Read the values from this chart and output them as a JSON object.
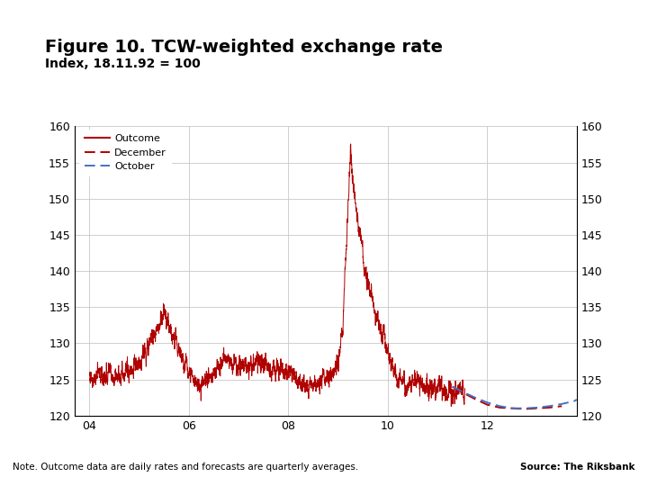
{
  "title": "Figure 10. TCW-weighted exchange rate",
  "subtitle": "Index, 18.11.92 = 100",
  "note": "Note. Outcome data are daily rates and forecasts are quarterly averages.",
  "source": "Source: The Riksbank",
  "ylim": [
    120,
    160
  ],
  "yticks": [
    120,
    125,
    130,
    135,
    140,
    145,
    150,
    155,
    160
  ],
  "xtick_labels": [
    "04",
    "06",
    "08",
    "10",
    "12"
  ],
  "xtick_positions": [
    2004,
    2006,
    2008,
    2010,
    2012
  ],
  "xlim_left": 2003.7,
  "xlim_right": 2013.8,
  "background_color": "#ffffff",
  "plot_bg_color": "#ffffff",
  "grid_color": "#c8c8c8",
  "outcome_color": "#b00000",
  "december_color": "#b00000",
  "october_color": "#4472c4",
  "footer_bar_color": "#1f3d99",
  "logo_bg_color": "#1f3d99",
  "title_fontsize": 14,
  "subtitle_fontsize": 10,
  "tick_fontsize": 9,
  "note_fontsize": 7.5,
  "legend_fontsize": 8
}
